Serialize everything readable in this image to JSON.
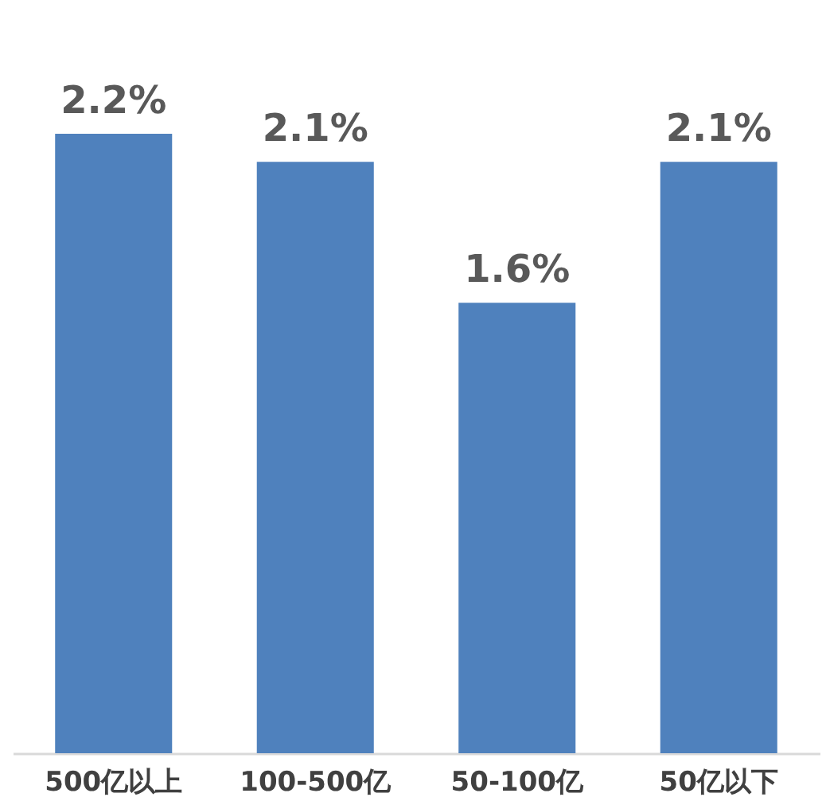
{
  "chart_data": {
    "type": "bar",
    "categories": [
      "500亿以上",
      "100-500亿",
      "50-100亿",
      "50亿以下"
    ],
    "values": [
      2.2,
      2.1,
      1.6,
      2.1
    ],
    "color": "#4f81bd",
    "value_labels": [
      "2.2%",
      "2.1%",
      "1.6%",
      "2.1%"
    ],
    "tick_labels": "x"
  }
}
